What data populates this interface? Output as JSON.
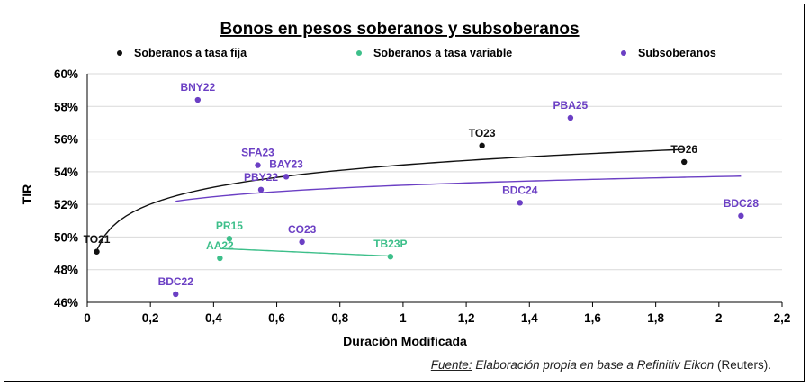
{
  "chart_data": {
    "type": "scatter",
    "title": "Bonos en pesos soberanos y subsoberanos",
    "xlabel": "Duración Modificada",
    "ylabel": "TIR",
    "xlim": [
      0,
      2.2
    ],
    "ylim": [
      46,
      60
    ],
    "x_ticks": [
      "0",
      "0,2",
      "0,4",
      "0,6",
      "0,8",
      "1",
      "1,2",
      "1,4",
      "1,6",
      "1,8",
      "2",
      "2,2"
    ],
    "y_ticks": [
      "46%",
      "48%",
      "50%",
      "52%",
      "54%",
      "56%",
      "58%",
      "60%"
    ],
    "grid": "horizontal",
    "legend_position": "top",
    "series": [
      {
        "name": "Soberanos a tasa fija",
        "color": "#111111",
        "label_color": "#111111",
        "points": [
          {
            "label": "TO21",
            "x": 0.03,
            "y": 49.1
          },
          {
            "label": "TO23",
            "x": 1.25,
            "y": 55.6
          },
          {
            "label": "TO26",
            "x": 1.89,
            "y": 54.6
          }
        ],
        "trendline": {
          "type": "log",
          "x_range": [
            0.03,
            1.89
          ],
          "color": "#111111"
        }
      },
      {
        "name": "Soberanos a tasa variable",
        "color": "#3dbf8a",
        "label_color": "#3dbf8a",
        "points": [
          {
            "label": "PR15",
            "x": 0.45,
            "y": 49.9
          },
          {
            "label": "AA22",
            "x": 0.42,
            "y": 48.7
          },
          {
            "label": "TB23P",
            "x": 0.96,
            "y": 48.8
          }
        ],
        "trendline": {
          "type": "linear",
          "x_range": [
            0.42,
            0.96
          ],
          "color": "#3dbf8a"
        }
      },
      {
        "name": "Subsoberanos",
        "color": "#6b3fc4",
        "label_color": "#6b3fc4",
        "points": [
          {
            "label": "BNY22",
            "x": 0.35,
            "y": 58.4
          },
          {
            "label": "PBA25",
            "x": 1.53,
            "y": 57.3
          },
          {
            "label": "SFA23",
            "x": 0.54,
            "y": 54.4
          },
          {
            "label": "BAY23",
            "x": 0.63,
            "y": 53.7
          },
          {
            "label": "PBY22",
            "x": 0.55,
            "y": 52.9
          },
          {
            "label": "BDC24",
            "x": 1.37,
            "y": 52.1
          },
          {
            "label": "BDC28",
            "x": 2.07,
            "y": 51.3
          },
          {
            "label": "CO23",
            "x": 0.68,
            "y": 49.7
          },
          {
            "label": "BDC22",
            "x": 0.28,
            "y": 46.5
          }
        ],
        "trendline": {
          "type": "log",
          "x_range": [
            0.28,
            2.07
          ],
          "color": "#6b3fc4"
        }
      }
    ]
  },
  "source": {
    "head": "Fuente:",
    "body": " Elaboración propia en base a Refinitiv Eikon",
    "tail": " (Reuters)."
  }
}
